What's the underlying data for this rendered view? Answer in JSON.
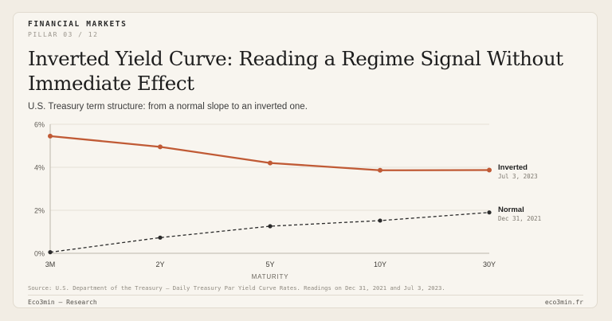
{
  "header": {
    "kicker": "FINANCIAL MARKETS",
    "pillar": "PILLAR 03 / 12",
    "title": "Inverted Yield Curve: Reading a Regime Signal Without Immediate Effect",
    "subtitle": "U.S. Treasury term structure: from a normal slope to an inverted one."
  },
  "chart_data": {
    "type": "line",
    "categories": [
      "3M",
      "2Y",
      "5Y",
      "10Y",
      "30Y"
    ],
    "xlabel": "MATURITY",
    "ylabel": "",
    "ylim": [
      0,
      6
    ],
    "yticks": [
      "0%",
      "2%",
      "4%",
      "6%"
    ],
    "grid": true,
    "series": [
      {
        "name": "Inverted",
        "date": "Jul 3, 2023",
        "values": [
          5.45,
          4.95,
          4.2,
          3.86,
          3.87
        ],
        "color": "#c05a35",
        "style": "solid"
      },
      {
        "name": "Normal",
        "date": "Dec 31, 2021",
        "values": [
          0.05,
          0.73,
          1.26,
          1.52,
          1.9
        ],
        "color": "#2b2b2b",
        "style": "dashed"
      }
    ]
  },
  "footer": {
    "source": "Source: U.S. Department of the Treasury — Daily Treasury Par Yield Curve Rates. Readings on Dec 31, 2021 and Jul 3, 2023.",
    "brand": "Eco3min — Research",
    "site": "eco3min.fr"
  }
}
